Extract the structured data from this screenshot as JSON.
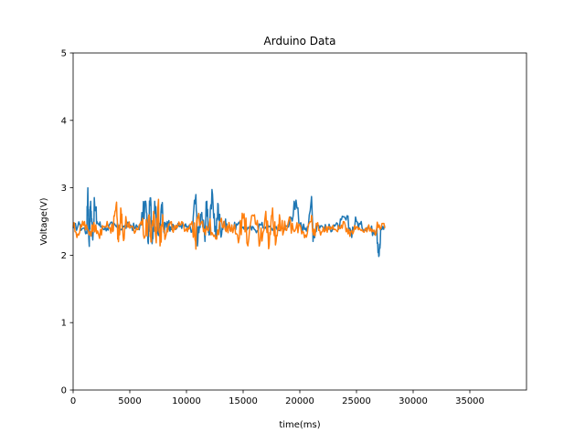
{
  "chart_data": {
    "type": "line",
    "title": "Arduino Data",
    "xlabel": "time(ms)",
    "ylabel": "Voltage(V)",
    "xlim": [
      0,
      40000
    ],
    "ylim": [
      0,
      5
    ],
    "xticks": [
      0,
      5000,
      10000,
      15000,
      20000,
      25000,
      30000,
      35000
    ],
    "yticks": [
      0,
      1,
      2,
      3,
      4,
      5
    ],
    "grid": false,
    "series": [
      {
        "color": "#1f77b4",
        "x": [
          0,
          600,
          1200,
          1300,
          1400,
          1550,
          1700,
          1900,
          2100,
          2500,
          3000,
          3500,
          4000,
          4500,
          5000,
          5500,
          6000,
          6400,
          6600,
          6800,
          7000,
          7200,
          7500,
          7800,
          8000,
          8300,
          8600,
          9000,
          9500,
          10000,
          10500,
          10800,
          11000,
          11300,
          11600,
          11800,
          12000,
          12300,
          12600,
          12800,
          13000,
          13300,
          13600,
          14000,
          14500,
          15000,
          15500,
          16000,
          16500,
          17000,
          17500,
          18000,
          18500,
          19000,
          19500,
          20000,
          20500,
          21000,
          21200,
          21500,
          22000,
          22500,
          23000,
          23500,
          24000,
          24500,
          25000,
          25500,
          26000,
          26500,
          26800,
          27000,
          27200,
          27500
        ],
        "y": [
          2.4,
          2.45,
          2.35,
          3.0,
          2.2,
          2.8,
          2.3,
          2.75,
          2.5,
          2.42,
          2.4,
          2.45,
          2.4,
          2.42,
          2.45,
          2.4,
          2.45,
          2.8,
          2.2,
          2.85,
          2.25,
          2.8,
          2.3,
          2.75,
          2.35,
          2.5,
          2.42,
          2.4,
          2.45,
          2.42,
          2.35,
          2.85,
          2.2,
          2.6,
          2.3,
          2.8,
          2.3,
          2.9,
          2.25,
          2.75,
          2.35,
          2.5,
          2.42,
          2.4,
          2.45,
          2.42,
          2.4,
          2.38,
          2.45,
          2.42,
          2.4,
          2.38,
          2.4,
          2.42,
          2.8,
          2.45,
          2.4,
          2.8,
          2.3,
          2.45,
          2.42,
          2.38,
          2.45,
          2.42,
          2.55,
          2.35,
          2.5,
          2.4,
          2.42,
          2.35,
          2.4,
          2.0,
          2.4,
          2.42
        ]
      },
      {
        "color": "#ff7f0e",
        "x": [
          0,
          500,
          1000,
          1500,
          2000,
          2500,
          3000,
          3500,
          3800,
          4000,
          4200,
          4400,
          4700,
          5000,
          5500,
          6000,
          6400,
          6700,
          6900,
          7100,
          7300,
          7500,
          7700,
          7900,
          8200,
          8500,
          9000,
          9500,
          10000,
          10500,
          10800,
          11000,
          11500,
          12000,
          12500,
          13000,
          13500,
          14000,
          14500,
          15000,
          15500,
          16000,
          16500,
          17000,
          17300,
          17600,
          17900,
          18200,
          18500,
          19000,
          19500,
          20000,
          20500,
          21000,
          21200,
          21500,
          22000,
          22500,
          23000,
          23500,
          24000,
          24500,
          25000,
          25500,
          26000,
          26500,
          27000,
          27500
        ],
        "y": [
          2.42,
          2.3,
          2.5,
          2.35,
          2.45,
          2.3,
          2.5,
          2.35,
          2.75,
          2.2,
          2.7,
          2.3,
          2.5,
          2.4,
          2.35,
          2.5,
          2.3,
          2.6,
          2.2,
          2.65,
          2.25,
          2.75,
          2.2,
          2.6,
          2.3,
          2.45,
          2.38,
          2.45,
          2.4,
          2.5,
          2.2,
          2.55,
          2.35,
          2.45,
          2.3,
          2.5,
          2.35,
          2.45,
          2.3,
          2.55,
          2.25,
          2.6,
          2.2,
          2.65,
          2.15,
          2.7,
          2.2,
          2.6,
          2.3,
          2.5,
          2.35,
          2.45,
          2.3,
          2.5,
          2.3,
          2.45,
          2.35,
          2.42,
          2.38,
          2.4,
          2.45,
          2.35,
          2.42,
          2.38,
          2.4,
          2.35,
          2.45,
          2.4
        ]
      }
    ]
  }
}
